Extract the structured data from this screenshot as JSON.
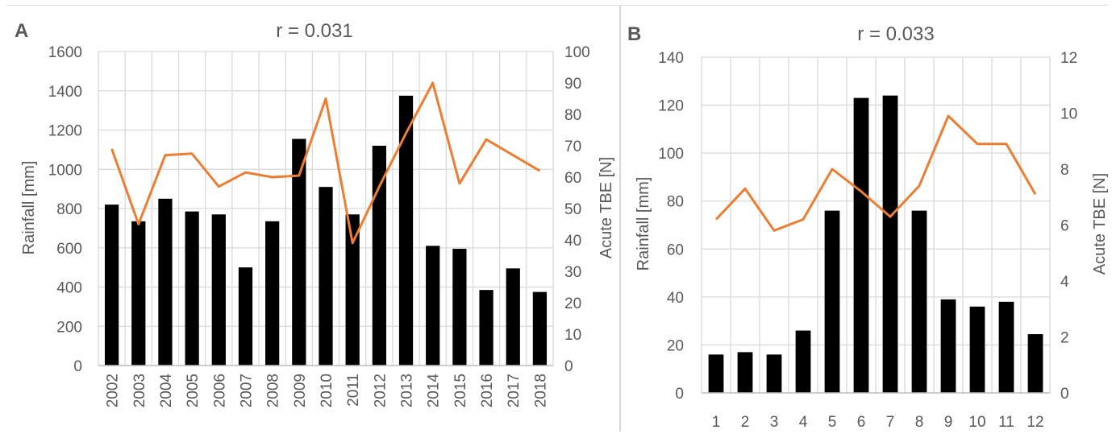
{
  "charts": [
    {
      "panel_label": "A",
      "title": "r = 0.031",
      "ylabel": "Rainfall [mm]",
      "y2label": "Acute TBE [N]",
      "ylim": [
        0,
        1600
      ],
      "yticks": [
        0,
        200,
        400,
        600,
        800,
        1000,
        1200,
        1400,
        1600
      ],
      "y2lim": [
        0,
        100
      ],
      "y2ticks": [
        0,
        10,
        20,
        30,
        40,
        50,
        60,
        70,
        80,
        90,
        100
      ],
      "x_tick_rotation": "vertical"
    },
    {
      "panel_label": "B",
      "title": "r = 0.033",
      "ylabel": "Rainfall [mm]",
      "y2label": "Acute TBE [N]",
      "ylim": [
        0,
        140
      ],
      "yticks": [
        0,
        20,
        40,
        60,
        80,
        100,
        120,
        140
      ],
      "y2lim": [
        0,
        12
      ],
      "y2ticks": [
        0,
        2,
        4,
        6,
        8,
        10,
        12
      ],
      "x_tick_rotation": "horizontal"
    }
  ],
  "chart_data": [
    {
      "type": "bar",
      "categories": [
        "2002",
        "2003",
        "2004",
        "2005",
        "2006",
        "2007",
        "2008",
        "2009",
        "2010",
        "2011",
        "2012",
        "2013",
        "2014",
        "2015",
        "2016",
        "2017",
        "2018"
      ],
      "series": [
        {
          "type": "bar",
          "axis": "left",
          "color": "#000000",
          "values": [
            820,
            735,
            850,
            785,
            770,
            500,
            735,
            1155,
            910,
            770,
            1120,
            1375,
            610,
            595,
            385,
            495,
            375
          ]
        },
        {
          "type": "line",
          "axis": "right",
          "color": "#ed7d31",
          "values": [
            69,
            45,
            67,
            67.5,
            57,
            61.5,
            60,
            60.5,
            85,
            39,
            57,
            74,
            90,
            58,
            72,
            67,
            62
          ]
        }
      ],
      "ylim": [
        0,
        1600
      ],
      "y2lim": [
        0,
        100
      ],
      "grid": true
    },
    {
      "type": "bar",
      "categories": [
        "1",
        "2",
        "3",
        "4",
        "5",
        "6",
        "7",
        "8",
        "9",
        "10",
        "11",
        "12"
      ],
      "series": [
        {
          "type": "bar",
          "axis": "left",
          "color": "#000000",
          "values": [
            16,
            17,
            16,
            26,
            76,
            123,
            124,
            76,
            39,
            36,
            38,
            24.5
          ]
        },
        {
          "type": "line",
          "axis": "right",
          "color": "#ed7d31",
          "values": [
            6.2,
            7.3,
            5.8,
            6.2,
            8.0,
            7.2,
            6.3,
            7.4,
            9.9,
            8.9,
            8.9,
            7.1
          ]
        }
      ],
      "ylim": [
        0,
        140
      ],
      "y2lim": [
        0,
        12
      ],
      "grid": true
    }
  ]
}
